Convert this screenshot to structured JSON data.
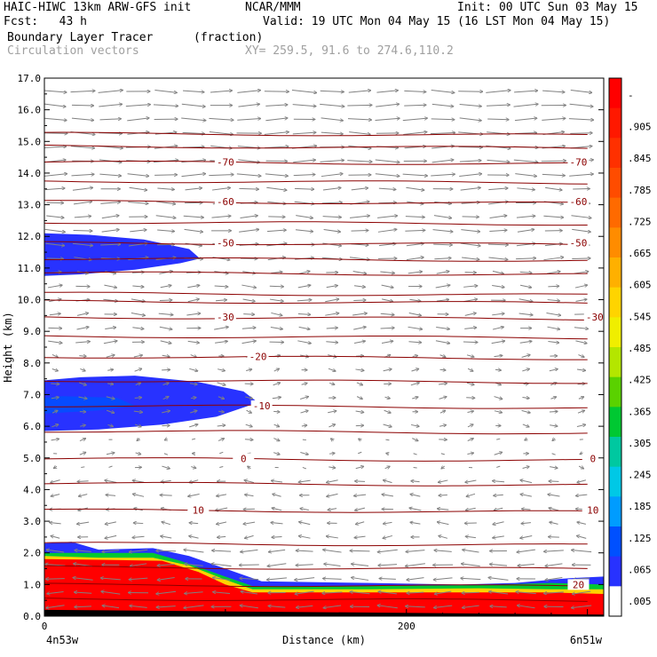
{
  "header": {
    "model": "HAIC-HIWC 13km ARW-GFS init",
    "org": "NCAR/MMM",
    "init": "Init: 00 UTC Sun 03 May 15",
    "fcst": "Fcst:   43 h",
    "valid": "Valid: 19 UTC Mon 04 May 15 (16 LST Mon 04 May 15)",
    "field": "Boundary Layer Tracer",
    "units": "(fraction)",
    "vectors": "Circulation vectors",
    "xy": "XY= 259.5, 91.6 to 274.6,110.2"
  },
  "chart_data": {
    "type": "heatmap",
    "title": "Boundary Layer Tracer",
    "units": "(fraction)",
    "xlabel": "Distance (km)",
    "ylabel": "Height (km)",
    "xlim": [
      0,
      309
    ],
    "ylim": [
      0,
      17
    ],
    "x_tick_labels": [
      "0",
      "200"
    ],
    "x_ticks": [
      0,
      200
    ],
    "x_end_labels": [
      "4n53w",
      "6n51w"
    ],
    "y_ticks": [
      0.0,
      1.0,
      2.0,
      3.0,
      4.0,
      5.0,
      6.0,
      7.0,
      8.0,
      9.0,
      10.0,
      11.0,
      12.0,
      13.0,
      14.0,
      15.0,
      16.0,
      17.0
    ],
    "y_tick_labels": [
      "0.0",
      "1.0",
      "2.0",
      "3.0",
      "4.0",
      "5.0",
      "6.0",
      "7.0",
      "8.0",
      "9.0",
      "10.0",
      "11.0",
      "12.0",
      "13.0",
      "14.0",
      "15.0",
      "16.0",
      "17.0"
    ],
    "colorbar": {
      "labels": [
        "-",
        ".905",
        ".845",
        ".785",
        ".725",
        ".665",
        ".605",
        ".545",
        ".485",
        ".425",
        ".365",
        ".305",
        ".245",
        ".185",
        ".125",
        ".065",
        ".005"
      ],
      "colors": [
        "#ff0000",
        "#ff1800",
        "#ff3000",
        "#ff4c00",
        "#ff6a00",
        "#ff8c00",
        "#ffb000",
        "#ffd400",
        "#f0ee00",
        "#b4e600",
        "#5ad200",
        "#00c832",
        "#00c8a0",
        "#00c8e6",
        "#009cff",
        "#0050ff",
        "#2832ff",
        "#ffffff"
      ]
    },
    "contours": [
      {
        "label": "-70",
        "y": 14.35,
        "labels_x": [
          100,
          295
        ]
      },
      {
        "label": "-60",
        "y": 13.1,
        "labels_x": [
          100,
          295
        ]
      },
      {
        "label": "-50",
        "y": 11.8,
        "labels_x": [
          100,
          295
        ]
      },
      {
        "label": "-30",
        "y": 9.45,
        "labels_x": [
          100,
          304
        ]
      },
      {
        "label": "-20",
        "y": 8.2,
        "labels_x": [
          118
        ]
      },
      {
        "label": "-10",
        "y": 6.65,
        "labels_x": [
          120
        ]
      },
      {
        "label": "0",
        "y": 4.98,
        "labels_x": [
          110,
          303
        ]
      },
      {
        "label": "10",
        "y": 3.35,
        "labels_x": [
          85,
          303
        ]
      },
      {
        "label": "20",
        "y": 1.0,
        "labels_x": [
          295
        ]
      }
    ],
    "extra_contour_levels": [
      15.25,
      14.85,
      13.75,
      12.45,
      11.3,
      10.85,
      10.2,
      9.95,
      8.85,
      7.45,
      5.85,
      4.2,
      2.3,
      1.55,
      0.55
    ],
    "tracer_regions": [
      {
        "name": "upper blob",
        "value": 0.005,
        "x": [
          0,
          85
        ],
        "y": [
          10.8,
          12.1
        ]
      },
      {
        "name": "mid blob",
        "value": 0.005,
        "x": [
          0,
          118
        ],
        "y": [
          5.9,
          7.6
        ]
      },
      {
        "name": "boundary layer",
        "value": 0.905,
        "x": [
          0,
          309
        ],
        "y": [
          0,
          2.3
        ]
      }
    ]
  }
}
